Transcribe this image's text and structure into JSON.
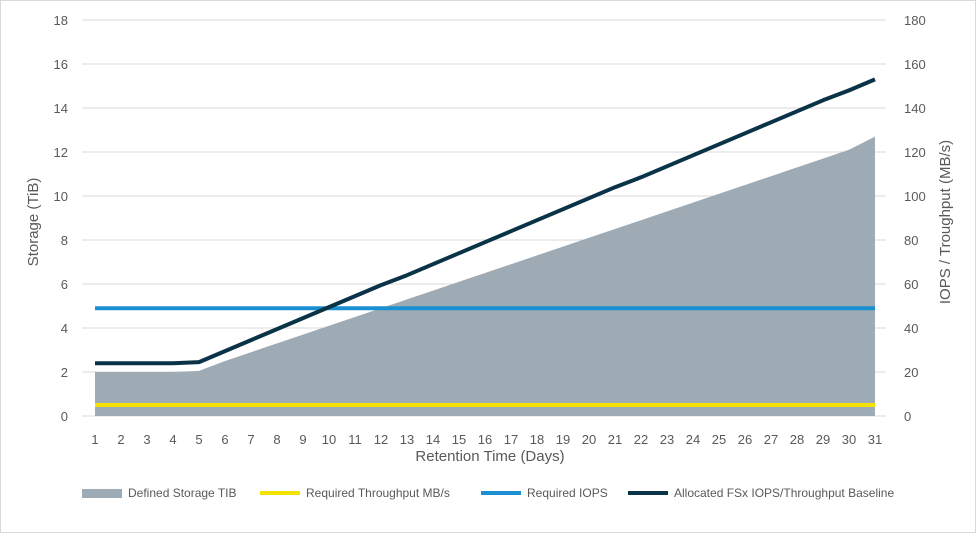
{
  "chart_data": {
    "type": "line",
    "x": [
      1,
      2,
      3,
      4,
      5,
      6,
      7,
      8,
      9,
      10,
      11,
      12,
      13,
      14,
      15,
      16,
      17,
      18,
      19,
      20,
      21,
      22,
      23,
      24,
      25,
      26,
      27,
      28,
      29,
      30,
      31
    ],
    "xlabel": "Retention Time (Days)",
    "ylabel_left": "Storage (TiB)",
    "ylabel_right": "IOPS / Troughput (MB/s)",
    "ylim_left": [
      0,
      18
    ],
    "ylim_right": [
      0,
      180
    ],
    "yticks_left": [
      0,
      2,
      4,
      6,
      8,
      10,
      12,
      14,
      16,
      18
    ],
    "yticks_right": [
      0,
      20,
      40,
      60,
      80,
      100,
      120,
      140,
      160,
      180
    ],
    "grid": true,
    "legend_position": "bottom",
    "series": [
      {
        "name": "Defined Storage TIB",
        "kind": "area",
        "axis": "left",
        "color": "#9eabb5",
        "values": [
          2,
          2,
          2,
          2,
          2.05,
          2.5,
          2.9,
          3.3,
          3.7,
          4.1,
          4.5,
          4.9,
          5.3,
          5.7,
          6.1,
          6.5,
          6.9,
          7.3,
          7.7,
          8.1,
          8.5,
          8.9,
          9.3,
          9.7,
          10.1,
          10.5,
          10.9,
          11.3,
          11.7,
          12.1,
          12.7
        ]
      },
      {
        "name": "Required Throughput MB/s",
        "kind": "line",
        "axis": "right",
        "color": "#f5e200",
        "values": [
          5,
          5,
          5,
          5,
          5,
          5,
          5,
          5,
          5,
          5,
          5,
          5,
          5,
          5,
          5,
          5,
          5,
          5,
          5,
          5,
          5,
          5,
          5,
          5,
          5,
          5,
          5,
          5,
          5,
          5,
          5
        ]
      },
      {
        "name": "Required IOPS",
        "kind": "line",
        "axis": "right",
        "color": "#1a8fd1",
        "values": [
          49,
          49,
          49,
          49,
          49,
          49,
          49,
          49,
          49,
          49,
          49,
          49,
          49,
          49,
          49,
          49,
          49,
          49,
          49,
          49,
          49,
          49,
          49,
          49,
          49,
          49,
          49,
          49,
          49,
          49,
          49
        ]
      },
      {
        "name": "Allocated FSx IOPS/Throughput Baseline",
        "kind": "line",
        "axis": "right",
        "color": "#0a3347",
        "values": [
          24,
          24,
          24,
          24,
          24.5,
          29.5,
          34.5,
          39.5,
          44.5,
          49.5,
          54.5,
          59.5,
          64,
          69,
          74,
          79,
          84,
          89,
          94,
          99,
          104,
          108.5,
          113.5,
          118.5,
          123.5,
          128.5,
          133.5,
          138.5,
          143.5,
          148,
          153
        ]
      }
    ]
  }
}
